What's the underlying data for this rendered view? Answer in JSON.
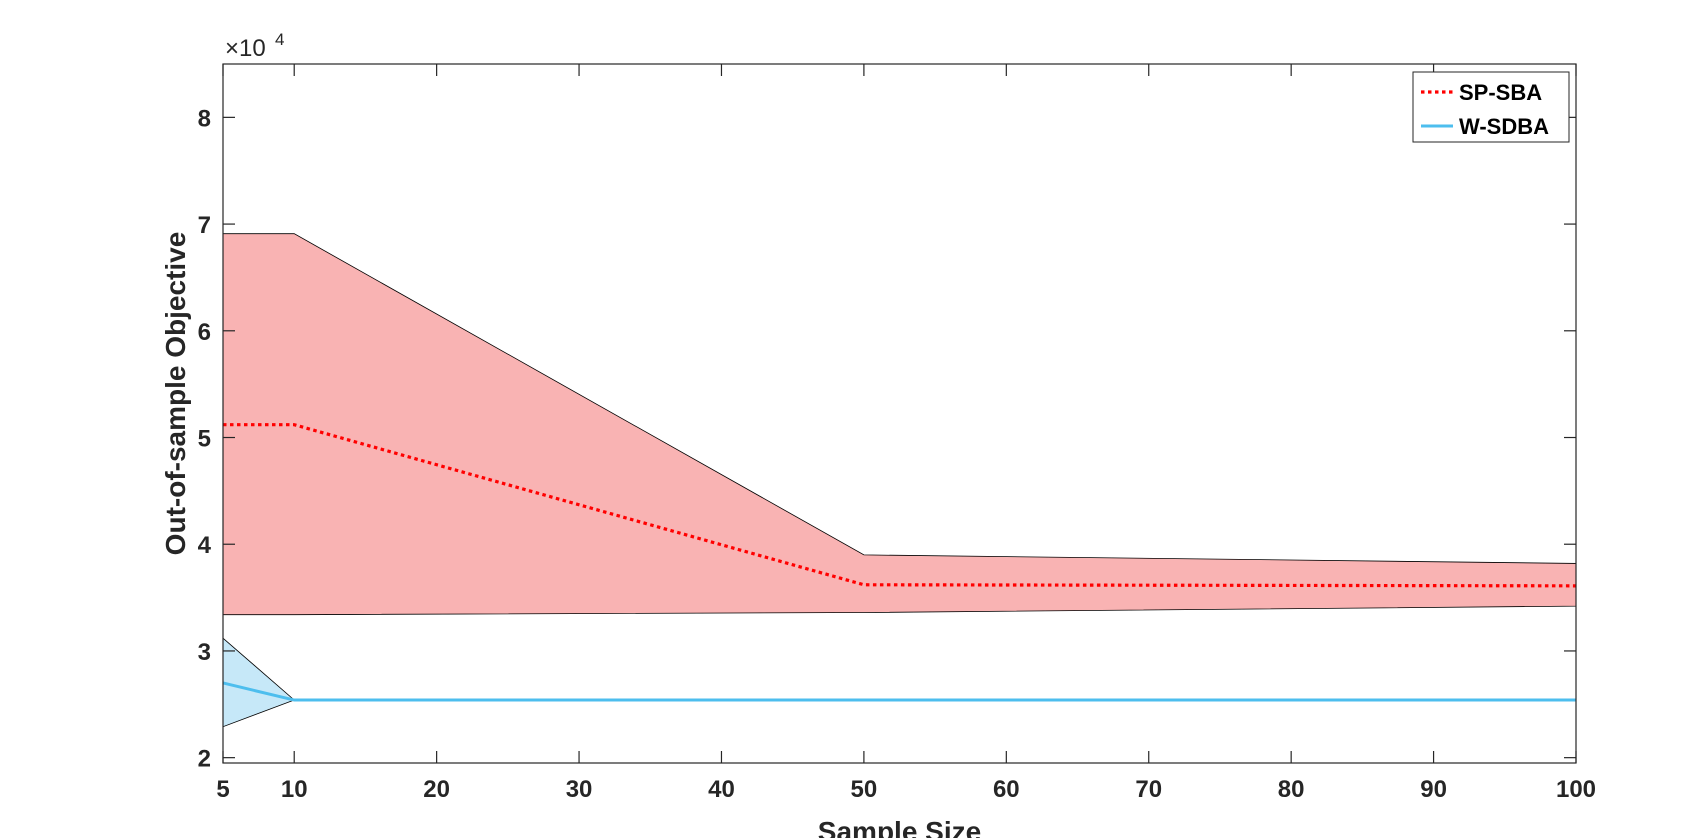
{
  "chart_data": {
    "type": "line",
    "xlabel": "Sample Size",
    "ylabel": "Out-of-sample Objective",
    "y_multiplier": "×10",
    "y_multiplier_exp": "4",
    "xlim": [
      5,
      100
    ],
    "ylim": [
      19500,
      85000
    ],
    "x_ticks": [
      5,
      10,
      20,
      30,
      40,
      50,
      60,
      70,
      80,
      90,
      100
    ],
    "y_ticks": [
      2,
      3,
      4,
      5,
      6,
      7,
      8
    ],
    "y_tick_scale": 10000,
    "grid": false,
    "legend_position": "top-right",
    "series": [
      {
        "name": "SP-SBA",
        "style": "dotted",
        "color": "#ff0000",
        "band_color": "#f9b3b3",
        "x": [
          5,
          10,
          50,
          100
        ],
        "values": [
          51200,
          51200,
          36200,
          36100
        ],
        "upper": [
          69100,
          69100,
          39000,
          38200
        ],
        "lower": [
          33400,
          33400,
          33600,
          34200
        ]
      },
      {
        "name": "W-SDBA",
        "style": "solid",
        "color": "#4dbeee",
        "band_color": "#c6e8f8",
        "x": [
          5,
          10,
          50,
          100
        ],
        "values": [
          27000,
          25400,
          25400,
          25400
        ],
        "upper": [
          31200,
          25400,
          25400,
          25400
        ],
        "lower": [
          22900,
          25400,
          25400,
          25400
        ]
      }
    ]
  }
}
